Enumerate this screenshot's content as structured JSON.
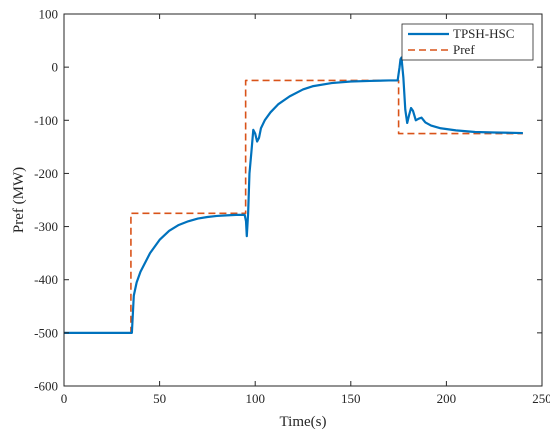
{
  "chart_data": {
    "type": "line",
    "xlabel": "Time(s)",
    "ylabel": "Pref (MW)",
    "xlim": [
      0,
      250
    ],
    "ylim": [
      -600,
      100
    ],
    "x_ticks": [
      0,
      50,
      100,
      150,
      200,
      250
    ],
    "y_ticks": [
      100,
      0,
      -100,
      -200,
      -300,
      -400,
      -500,
      -600
    ],
    "x_tick_labels": [
      "0",
      "50",
      "100",
      "150",
      "200",
      "250"
    ],
    "y_tick_labels": [
      "100",
      "0",
      "-100",
      "-200",
      "-300",
      "-400",
      "-500",
      "-600"
    ],
    "grid": false,
    "box": true,
    "legend_position": "top-right",
    "series": [
      {
        "name": "TPSH-HSC",
        "color": "#0072BD",
        "style": "solid",
        "points": [
          [
            0,
            -500
          ],
          [
            35,
            -500
          ],
          [
            35.5,
            -500
          ],
          [
            36.5,
            -430
          ],
          [
            38,
            -405
          ],
          [
            40,
            -385
          ],
          [
            45,
            -350
          ],
          [
            50,
            -325
          ],
          [
            55,
            -308
          ],
          [
            60,
            -297
          ],
          [
            65,
            -290
          ],
          [
            70,
            -285
          ],
          [
            75,
            -282
          ],
          [
            80,
            -280
          ],
          [
            85,
            -279
          ],
          [
            90,
            -278
          ],
          [
            94.5,
            -278
          ],
          [
            95.2,
            -290
          ],
          [
            95.6,
            -318
          ],
          [
            96.3,
            -275
          ],
          [
            97,
            -200
          ],
          [
            98,
            -160
          ],
          [
            99,
            -118
          ],
          [
            100,
            -125
          ],
          [
            101,
            -140
          ],
          [
            102,
            -133
          ],
          [
            103,
            -115
          ],
          [
            105,
            -100
          ],
          [
            108,
            -85
          ],
          [
            112,
            -70
          ],
          [
            118,
            -55
          ],
          [
            125,
            -42
          ],
          [
            130,
            -36
          ],
          [
            140,
            -30
          ],
          [
            150,
            -27
          ],
          [
            160,
            -26
          ],
          [
            170,
            -25
          ],
          [
            174.5,
            -25
          ],
          [
            175.5,
            0
          ],
          [
            176,
            15
          ],
          [
            176.5,
            18
          ],
          [
            177.5,
            -20
          ],
          [
            178.5,
            -80
          ],
          [
            179.5,
            -105
          ],
          [
            180.5,
            -90
          ],
          [
            181.5,
            -77
          ],
          [
            182.5,
            -82
          ],
          [
            184,
            -100
          ],
          [
            185.5,
            -97
          ],
          [
            187,
            -95
          ],
          [
            189,
            -104
          ],
          [
            192,
            -110
          ],
          [
            197,
            -115
          ],
          [
            205,
            -119
          ],
          [
            215,
            -122
          ],
          [
            225,
            -123
          ],
          [
            240,
            -124
          ]
        ]
      },
      {
        "name": "Pref",
        "color": "#D95319",
        "style": "dashed",
        "points": [
          [
            0,
            -500
          ],
          [
            35,
            -500
          ],
          [
            35,
            -275
          ],
          [
            95,
            -275
          ],
          [
            95,
            -25
          ],
          [
            175,
            -25
          ],
          [
            175,
            -125
          ],
          [
            240,
            -125
          ]
        ]
      }
    ]
  }
}
